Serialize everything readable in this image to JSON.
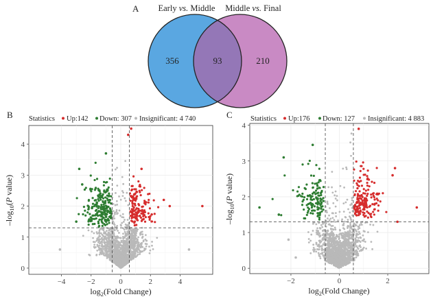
{
  "panel_letters": {
    "a": "A",
    "b": "B",
    "c": "C"
  },
  "venn": {
    "left_label_pre": "Early ",
    "left_label_vs": "vs.",
    "left_label_post": " Middle",
    "right_label_pre": "Middle ",
    "right_label_vs": "vs.",
    "right_label_post": " Final",
    "left_only": "356",
    "overlap": "93",
    "right_only": "210",
    "colors": {
      "left": "#5aa7e1",
      "right": "#c98ac4",
      "overlap": "#9477b7",
      "stroke": "#222222"
    }
  },
  "chart_data": [
    {
      "type": "scatter",
      "panel": "B",
      "legend": {
        "title": "Statistics",
        "up": "Up:142",
        "down": "Down: 307",
        "insig": "Insignificant: 4 740"
      },
      "xlabel_pre": "log",
      "xlabel_sub": "2",
      "xlabel_post": "(Fold Change)",
      "ylabel_pre": "–log",
      "ylabel_sub": "10",
      "ylabel_mid": "(",
      "ylabel_italic": "P",
      "ylabel_post": " value)",
      "xlim": [
        -6.2,
        6.2
      ],
      "ylim": [
        -0.2,
        4.6
      ],
      "xticks": [
        -4,
        -2,
        0,
        2,
        4
      ],
      "yticks": [
        0,
        1,
        2,
        3,
        4
      ],
      "xtick_labels": [
        "−4",
        "−2",
        "0",
        "2",
        "4"
      ],
      "ytick_labels": [
        "0",
        "1",
        "2",
        "3",
        "4"
      ],
      "thresholds": {
        "x": [
          -0.58,
          0.58
        ],
        "y": 1.3
      },
      "colors": {
        "up": "#d62d2d",
        "down": "#2e7d32",
        "insig": "#b9b9b9"
      },
      "counts": {
        "up": 142,
        "down": 307,
        "insig": 4740
      },
      "highlights": [
        {
          "x": 5.5,
          "y": 2.0,
          "group": "up"
        },
        {
          "x": 2.9,
          "y": 2.2,
          "group": "up"
        },
        {
          "x": 3.3,
          "y": 2.0,
          "group": "up"
        },
        {
          "x": 1.4,
          "y": 3.2,
          "group": "up"
        },
        {
          "x": 0.7,
          "y": 4.5,
          "group": "up"
        },
        {
          "x": 0.5,
          "y": 4.3,
          "group": "up"
        },
        {
          "x": -2.8,
          "y": 3.2,
          "group": "down"
        },
        {
          "x": -2.6,
          "y": 2.7,
          "group": "down"
        },
        {
          "x": -3.0,
          "y": 1.5,
          "group": "down"
        },
        {
          "x": -1.0,
          "y": 3.7,
          "group": "down"
        },
        {
          "x": -4.1,
          "y": 0.6,
          "group": "insig"
        },
        {
          "x": 4.6,
          "y": 0.6,
          "group": "insig"
        }
      ]
    },
    {
      "type": "scatter",
      "panel": "C",
      "legend": {
        "title": "Statistics",
        "up": "Up:176",
        "down": "Down: 127",
        "insig": "Insignificant: 4 883"
      },
      "xlabel_pre": "log",
      "xlabel_sub": "2",
      "xlabel_post": "(Fold Change)",
      "ylabel_pre": "–log",
      "ylabel_sub": "10",
      "ylabel_mid": "(",
      "ylabel_italic": "P",
      "ylabel_post": " value)",
      "xlim": [
        -3.7,
        3.7
      ],
      "ylim": [
        -0.15,
        4.05
      ],
      "xticks": [
        -2,
        0,
        2
      ],
      "yticks": [
        0,
        1,
        2,
        3,
        4
      ],
      "xtick_labels": [
        "−2",
        "0",
        "2"
      ],
      "ytick_labels": [
        "0",
        "1",
        "2",
        "3",
        "4"
      ],
      "thresholds": {
        "x": [
          -0.58,
          0.58
        ],
        "y": 1.3
      },
      "colors": {
        "up": "#d62d2d",
        "down": "#2e7d32",
        "insig": "#b9b9b9"
      },
      "counts": {
        "up": 176,
        "down": 127,
        "insig": 4883
      },
      "highlights": [
        {
          "x": 3.2,
          "y": 1.7,
          "group": "up"
        },
        {
          "x": 2.3,
          "y": 2.8,
          "group": "up"
        },
        {
          "x": 2.2,
          "y": 2.6,
          "group": "up"
        },
        {
          "x": 0.8,
          "y": 3.9,
          "group": "up"
        },
        {
          "x": 2.4,
          "y": 1.3,
          "group": "up"
        },
        {
          "x": -2.3,
          "y": 3.1,
          "group": "down"
        },
        {
          "x": -2.5,
          "y": 1.5,
          "group": "down"
        },
        {
          "x": -1.1,
          "y": 3.45,
          "group": "down"
        },
        {
          "x": -3.3,
          "y": 1.7,
          "group": "down"
        },
        {
          "x": -2.1,
          "y": 0.8,
          "group": "insig"
        },
        {
          "x": -1.8,
          "y": 0.3,
          "group": "insig"
        }
      ]
    }
  ]
}
